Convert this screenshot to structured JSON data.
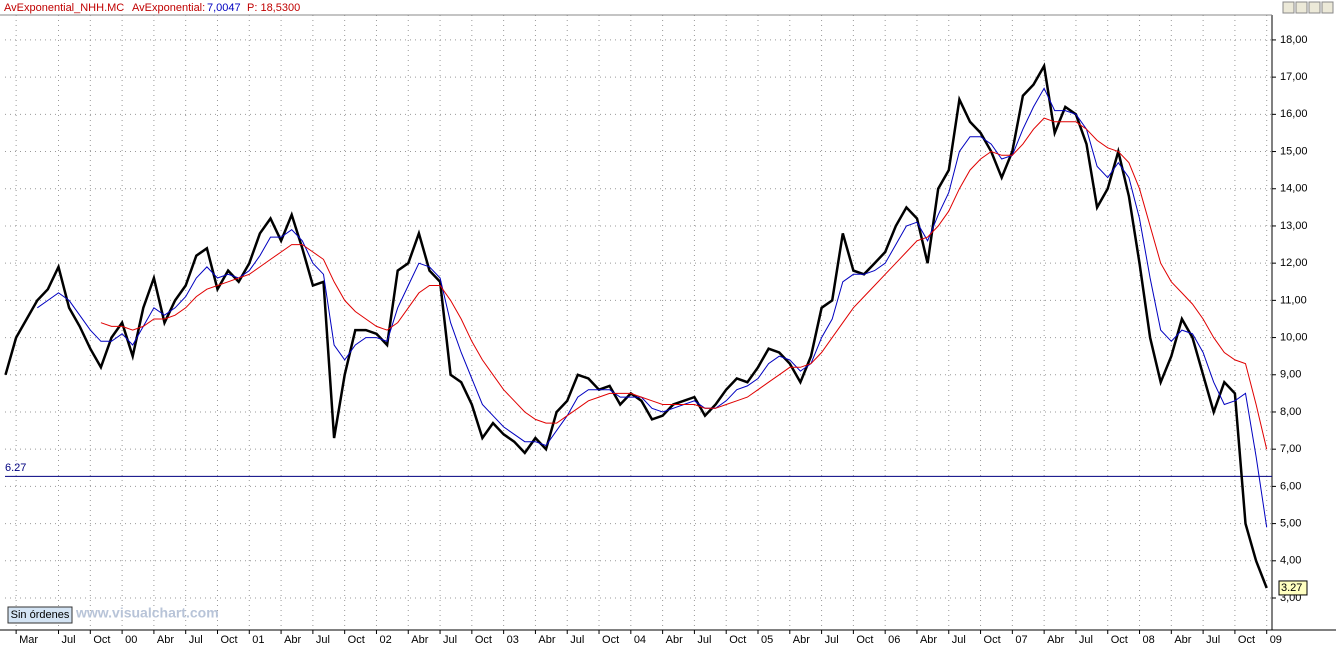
{
  "header": {
    "title": "AvExponential_NHH.MC",
    "indicator": "AvExponential:",
    "indicator_value": "7,0047",
    "price": "P: 18,5300"
  },
  "button": "Sin órdenes",
  "watermark": "www.visualchart.com",
  "chart_data": {
    "type": "line",
    "x": [
      -1,
      0,
      1,
      2,
      3,
      4,
      5,
      6,
      7,
      8,
      9,
      10,
      11,
      12,
      13,
      14,
      15,
      16,
      17,
      18,
      19,
      20,
      21,
      22,
      23,
      24,
      25,
      26,
      27,
      28,
      29,
      30,
      31,
      32,
      33,
      34,
      35,
      36,
      37,
      38,
      39,
      40,
      41,
      42,
      43,
      44,
      45,
      46,
      47,
      48,
      49,
      50,
      51,
      52,
      53,
      54,
      55,
      56,
      57,
      58,
      59,
      60,
      61,
      62,
      63,
      64,
      65,
      66,
      67,
      68,
      69,
      70,
      71,
      72,
      73,
      74,
      75,
      76,
      77,
      78,
      79,
      80,
      81,
      82,
      83,
      84,
      85,
      86,
      87,
      88,
      89,
      90,
      91,
      92,
      93,
      94,
      95,
      96,
      97,
      98,
      99,
      100,
      101,
      102,
      103,
      104,
      105,
      106,
      107,
      108,
      109,
      110,
      111,
      112,
      113,
      114,
      115,
      116,
      117,
      118
    ],
    "series": [
      {
        "color": "#000000",
        "values": [
          9.0,
          10.0,
          10.5,
          11.0,
          11.3,
          11.9,
          10.8,
          10.3,
          9.7,
          9.2,
          10.0,
          10.4,
          9.5,
          10.8,
          11.6,
          10.4,
          11.0,
          11.4,
          12.2,
          12.4,
          11.3,
          11.8,
          11.5,
          12.0,
          12.8,
          13.2,
          12.6,
          13.3,
          12.4,
          11.4,
          11.5,
          7.3,
          9.0,
          10.2,
          10.2,
          10.1,
          9.8,
          11.8,
          12.0,
          12.8,
          11.8,
          11.5,
          9.0,
          8.8,
          8.2,
          7.3,
          7.7,
          7.4,
          7.2,
          6.9,
          7.3,
          7.0,
          8.0,
          8.3,
          9.0,
          8.9,
          8.6,
          8.7,
          8.2,
          8.5,
          8.3,
          7.8,
          7.9,
          8.2,
          8.3,
          8.4,
          7.9,
          8.2,
          8.6,
          8.9,
          8.8,
          9.2,
          9.7,
          9.6,
          9.3,
          8.8,
          9.5,
          10.8,
          11.0,
          12.8,
          11.8,
          11.7,
          12.0,
          12.3,
          13.0,
          13.5,
          13.2,
          12.0,
          14.0,
          14.5,
          16.4,
          15.8,
          15.5,
          15.0,
          14.3,
          15.0,
          16.5,
          16.8,
          17.3,
          15.5,
          16.2,
          16.0,
          15.2,
          13.5,
          14.0,
          15.0,
          13.8,
          12.0,
          10.0,
          8.8,
          9.5,
          10.5,
          10.0,
          9.0,
          8.0,
          8.8,
          8.5,
          5.0,
          4.0,
          3.27
        ]
      },
      {
        "color": "#0000c0",
        "values": [
          null,
          null,
          null,
          10.8,
          11.0,
          11.2,
          11.0,
          10.6,
          10.2,
          9.9,
          9.9,
          10.1,
          9.8,
          10.3,
          10.8,
          10.6,
          10.8,
          11.1,
          11.6,
          11.9,
          11.6,
          11.7,
          11.6,
          11.8,
          12.2,
          12.7,
          12.7,
          12.9,
          12.6,
          12.0,
          11.7,
          9.8,
          9.4,
          9.8,
          10.0,
          10.0,
          9.9,
          10.8,
          11.4,
          12.0,
          11.9,
          11.6,
          10.4,
          9.6,
          8.9,
          8.2,
          7.9,
          7.6,
          7.4,
          7.2,
          7.2,
          7.1,
          7.5,
          7.9,
          8.4,
          8.6,
          8.6,
          8.6,
          8.4,
          8.4,
          8.4,
          8.1,
          8.0,
          8.1,
          8.2,
          8.3,
          8.1,
          8.1,
          8.3,
          8.6,
          8.7,
          8.9,
          9.3,
          9.5,
          9.4,
          9.1,
          9.3,
          10.0,
          10.5,
          11.5,
          11.7,
          11.7,
          11.8,
          12.0,
          12.5,
          13.0,
          13.1,
          12.6,
          13.3,
          13.9,
          15.0,
          15.4,
          15.4,
          15.2,
          14.8,
          14.9,
          15.6,
          16.2,
          16.7,
          16.1,
          16.1,
          16.0,
          15.6,
          14.6,
          14.3,
          14.7,
          14.3,
          13.2,
          11.6,
          10.2,
          9.9,
          10.2,
          10.1,
          9.6,
          8.8,
          8.2,
          8.3,
          8.5,
          6.8,
          4.9
        ]
      },
      {
        "color": "#e00000",
        "values": [
          null,
          null,
          null,
          null,
          null,
          null,
          null,
          null,
          null,
          10.4,
          10.3,
          10.3,
          10.2,
          10.3,
          10.5,
          10.5,
          10.6,
          10.8,
          11.1,
          11.3,
          11.4,
          11.5,
          11.6,
          11.7,
          11.9,
          12.1,
          12.3,
          12.5,
          12.5,
          12.3,
          12.1,
          11.5,
          11.0,
          10.7,
          10.5,
          10.3,
          10.2,
          10.4,
          10.8,
          11.2,
          11.4,
          11.4,
          11.0,
          10.5,
          9.9,
          9.4,
          9.0,
          8.6,
          8.3,
          8.0,
          7.8,
          7.7,
          7.7,
          7.9,
          8.1,
          8.3,
          8.4,
          8.5,
          8.5,
          8.5,
          8.4,
          8.3,
          8.2,
          8.2,
          8.2,
          8.2,
          8.1,
          8.1,
          8.2,
          8.3,
          8.4,
          8.6,
          8.8,
          9.0,
          9.2,
          9.2,
          9.3,
          9.6,
          10.0,
          10.4,
          10.8,
          11.1,
          11.4,
          11.7,
          12.0,
          12.3,
          12.6,
          12.7,
          13.0,
          13.4,
          14.0,
          14.5,
          14.8,
          15.0,
          14.9,
          14.9,
          15.2,
          15.6,
          15.9,
          15.8,
          15.8,
          15.8,
          15.6,
          15.3,
          15.1,
          15.0,
          14.7,
          14.0,
          13.0,
          12.0,
          11.5,
          11.2,
          10.9,
          10.5,
          10.0,
          9.6,
          9.4,
          9.3,
          8.2,
          7.0
        ]
      }
    ],
    "hline": {
      "value": 6.27,
      "color": "#000080"
    },
    "xlim": [
      -1.05,
      118.5
    ],
    "ylim": [
      2.14,
      18.67
    ],
    "xticks": [
      {
        "value": 0,
        "label": "Mar"
      },
      {
        "value": 4,
        "label": "Jul"
      },
      {
        "value": 7,
        "label": "Oct"
      },
      {
        "value": 10,
        "label": "00"
      },
      {
        "value": 13,
        "label": "Abr"
      },
      {
        "value": 16,
        "label": "Jul"
      },
      {
        "value": 19,
        "label": "Oct"
      },
      {
        "value": 22,
        "label": "01"
      },
      {
        "value": 25,
        "label": "Abr"
      },
      {
        "value": 28,
        "label": "Jul"
      },
      {
        "value": 31,
        "label": "Oct"
      },
      {
        "value": 34,
        "label": "02"
      },
      {
        "value": 37,
        "label": "Abr"
      },
      {
        "value": 40,
        "label": "Jul"
      },
      {
        "value": 43,
        "label": "Oct"
      },
      {
        "value": 46,
        "label": "03"
      },
      {
        "value": 49,
        "label": "Abr"
      },
      {
        "value": 52,
        "label": "Jul"
      },
      {
        "value": 55,
        "label": "Oct"
      },
      {
        "value": 58,
        "label": "04"
      },
      {
        "value": 61,
        "label": "Abr"
      },
      {
        "value": 64,
        "label": "Jul"
      },
      {
        "value": 67,
        "label": "Oct"
      },
      {
        "value": 70,
        "label": "05"
      },
      {
        "value": 73,
        "label": "Abr"
      },
      {
        "value": 76,
        "label": "Jul"
      },
      {
        "value": 79,
        "label": "Oct"
      },
      {
        "value": 82,
        "label": "06"
      },
      {
        "value": 85,
        "label": "Abr"
      },
      {
        "value": 88,
        "label": "Jul"
      },
      {
        "value": 91,
        "label": "Oct"
      },
      {
        "value": 94,
        "label": "07"
      },
      {
        "value": 97,
        "label": "Abr"
      },
      {
        "value": 100,
        "label": "Jul"
      },
      {
        "value": 103,
        "label": "Oct"
      },
      {
        "value": 106,
        "label": "08"
      },
      {
        "value": 109,
        "label": "Abr"
      },
      {
        "value": 112,
        "label": "Jul"
      },
      {
        "value": 115,
        "label": "Oct"
      },
      {
        "value": 118,
        "label": "09"
      }
    ],
    "yticks": [
      {
        "value": 3,
        "label": "3,00"
      },
      {
        "value": 4,
        "label": "4,00"
      },
      {
        "value": 5,
        "label": "5,00"
      },
      {
        "value": 6,
        "label": "6,00"
      },
      {
        "value": 7,
        "label": "7,00"
      },
      {
        "value": 8,
        "label": "8,00"
      },
      {
        "value": 9,
        "label": "9,00"
      },
      {
        "value": 10,
        "label": "10,00"
      },
      {
        "value": 11,
        "label": "11,00"
      },
      {
        "value": 12,
        "label": "12,00"
      },
      {
        "value": 13,
        "label": "13,00"
      },
      {
        "value": 14,
        "label": "14,00"
      },
      {
        "value": 15,
        "label": "15,00"
      },
      {
        "value": 16,
        "label": "16,00"
      },
      {
        "value": 17,
        "label": "17,00"
      },
      {
        "value": 18,
        "label": "18,00"
      }
    ],
    "grid": true
  }
}
